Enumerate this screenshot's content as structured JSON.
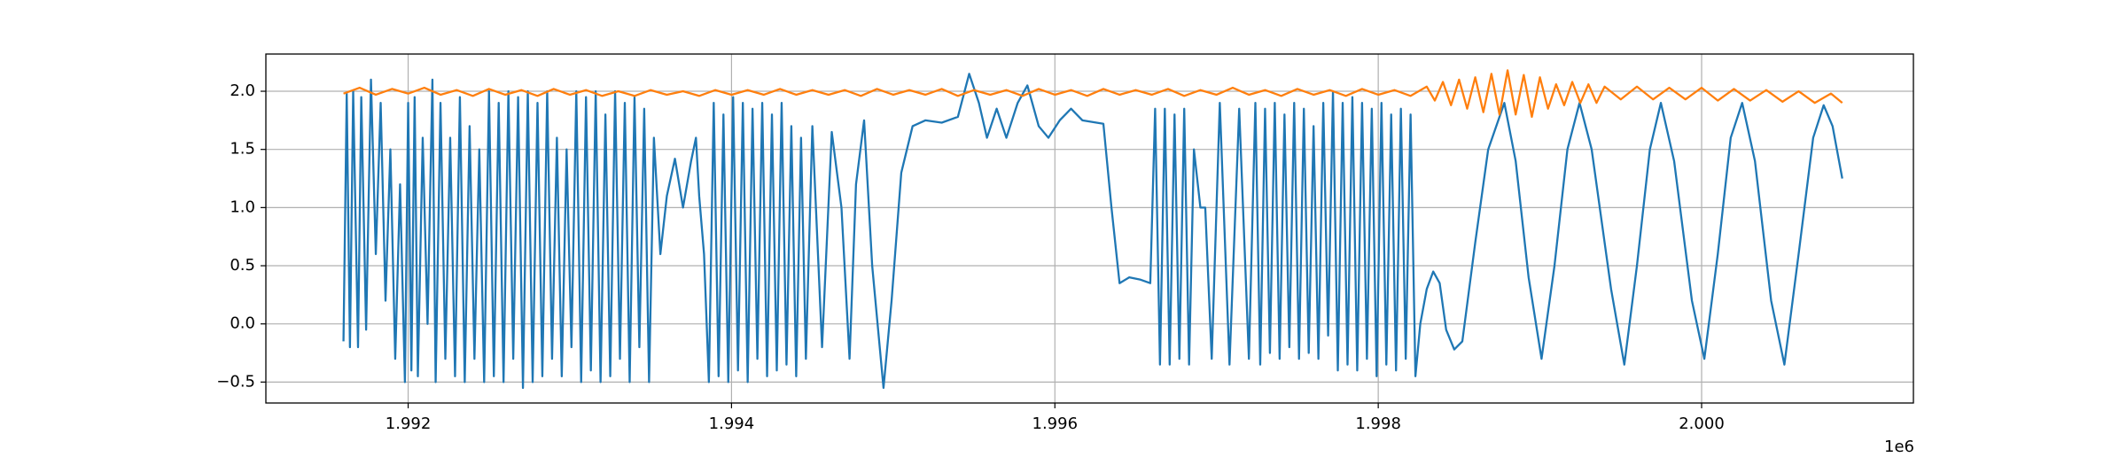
{
  "chart_data": {
    "type": "line",
    "offset_label": "1e6",
    "xlim": [
      1991120,
      2001310
    ],
    "ylim": [
      -0.68,
      2.32
    ],
    "xticks": [
      {
        "value": 1992000,
        "label": "1.992"
      },
      {
        "value": 1994000,
        "label": "1.994"
      },
      {
        "value": 1996000,
        "label": "1.996"
      },
      {
        "value": 1998000,
        "label": "1.998"
      },
      {
        "value": 2000000,
        "label": "2.000"
      }
    ],
    "yticks": [
      {
        "value": -0.5,
        "label": "−0.5"
      },
      {
        "value": 0,
        "label": "0.0"
      },
      0.5,
      {
        "value": 1,
        "label": "1.0"
      },
      1.5,
      {
        "value": 2,
        "label": "2.0"
      }
    ],
    "grid": true,
    "series": [
      {
        "color": "#1f77b4",
        "x": [
          1991600,
          1991620,
          1991640,
          1991660,
          1991690,
          1991710,
          1991740,
          1991770,
          1991800,
          1991830,
          1991860,
          1991890,
          1991920,
          1991950,
          1991980,
          1992000,
          1992020,
          1992040,
          1992060,
          1992090,
          1992120,
          1992150,
          1992170,
          1992200,
          1992230,
          1992260,
          1992290,
          1992320,
          1992350,
          1992380,
          1992410,
          1992440,
          1992470,
          1992500,
          1992530,
          1992560,
          1992590,
          1992620,
          1992650,
          1992680,
          1992710,
          1992740,
          1992770,
          1992800,
          1992830,
          1992860,
          1992890,
          1992920,
          1992950,
          1992980,
          1993010,
          1993040,
          1993070,
          1993100,
          1993130,
          1993160,
          1993190,
          1993220,
          1993250,
          1993280,
          1993310,
          1993340,
          1993370,
          1993400,
          1993430,
          1993460,
          1993490,
          1993520,
          1993560,
          1993600,
          1993650,
          1993700,
          1993750,
          1993780,
          1993800,
          1993830,
          1993860,
          1993890,
          1993920,
          1993950,
          1993980,
          1994010,
          1994040,
          1994070,
          1994100,
          1994130,
          1994160,
          1994190,
          1994220,
          1994250,
          1994280,
          1994310,
          1994340,
          1994370,
          1994400,
          1994430,
          1994460,
          1994500,
          1994560,
          1994620,
          1994680,
          1994730,
          1994770,
          1994820,
          1994870,
          1994940,
          1994990,
          1995050,
          1995120,
          1995200,
          1995300,
          1995400,
          1995470,
          1995530,
          1995580,
          1995640,
          1995700,
          1995770,
          1995830,
          1995900,
          1995960,
          1996030,
          1996100,
          1996170,
          1996300,
          1996350,
          1996400,
          1996460,
          1996530,
          1996590,
          1996620,
          1996650,
          1996680,
          1996710,
          1996740,
          1996770,
          1996800,
          1996830,
          1996860,
          1996900,
          1996930,
          1996970,
          1997020,
          1997080,
          1997140,
          1997200,
          1997240,
          1997270,
          1997300,
          1997330,
          1997360,
          1997390,
          1997420,
          1997450,
          1997480,
          1997510,
          1997540,
          1997570,
          1997600,
          1997630,
          1997660,
          1997690,
          1997720,
          1997750,
          1997780,
          1997810,
          1997840,
          1997870,
          1997900,
          1997930,
          1997960,
          1997990,
          1998020,
          1998050,
          1998080,
          1998110,
          1998140,
          1998170,
          1998200,
          1998230,
          1998260,
          1998300,
          1998340,
          1998380,
          1998420,
          1998470,
          1998520,
          1998600,
          1998680,
          1998780,
          1998850,
          1998930,
          1999010,
          1999090,
          1999170,
          1999245,
          1999320,
          1999440,
          1999522,
          1999600,
          1999680,
          1999748,
          1999830,
          1999940,
          2000017,
          2000100,
          2000180,
          2000251,
          2000330,
          2000430,
          2000512,
          2000600,
          2000690,
          2000755,
          2000810,
          2000870
        ],
        "values": [
          -0.15,
          1.98,
          -0.2,
          2.0,
          -0.2,
          1.95,
          -0.05,
          2.1,
          0.6,
          1.9,
          0.2,
          1.5,
          -0.3,
          1.2,
          -0.5,
          1.9,
          -0.4,
          1.95,
          -0.45,
          1.6,
          0.0,
          2.1,
          -0.5,
          1.9,
          -0.3,
          1.6,
          -0.45,
          1.95,
          -0.5,
          1.7,
          -0.3,
          1.5,
          -0.5,
          2.0,
          -0.45,
          1.9,
          -0.5,
          2.0,
          -0.3,
          1.95,
          -0.55,
          2.0,
          -0.5,
          1.9,
          -0.45,
          2.0,
          -0.3,
          1.6,
          -0.45,
          1.5,
          -0.2,
          2.0,
          -0.5,
          1.95,
          -0.4,
          2.0,
          -0.5,
          1.8,
          -0.45,
          2.0,
          -0.3,
          1.9,
          -0.5,
          1.95,
          -0.2,
          1.85,
          -0.5,
          1.6,
          0.6,
          1.1,
          1.42,
          1.0,
          1.4,
          1.6,
          1.1,
          0.6,
          -0.5,
          1.9,
          -0.45,
          1.8,
          -0.5,
          1.95,
          -0.4,
          1.9,
          -0.5,
          1.85,
          -0.3,
          1.9,
          -0.45,
          1.8,
          -0.4,
          1.9,
          -0.35,
          1.7,
          -0.45,
          1.6,
          -0.3,
          1.7,
          -0.2,
          1.65,
          1.0,
          -0.3,
          1.2,
          1.75,
          0.5,
          -0.55,
          0.2,
          1.3,
          1.7,
          1.75,
          1.73,
          1.78,
          2.15,
          1.9,
          1.6,
          1.85,
          1.6,
          1.9,
          2.05,
          1.7,
          1.6,
          1.75,
          1.85,
          1.75,
          1.72,
          1.0,
          0.35,
          0.4,
          0.38,
          0.35,
          1.85,
          -0.35,
          1.85,
          -0.35,
          1.8,
          -0.3,
          1.85,
          -0.35,
          1.5,
          1.0,
          1.0,
          -0.3,
          1.9,
          -0.35,
          1.85,
          -0.3,
          1.9,
          -0.35,
          1.85,
          -0.25,
          1.9,
          -0.3,
          1.8,
          -0.2,
          1.9,
          -0.3,
          1.85,
          -0.25,
          1.7,
          -0.3,
          1.9,
          -0.1,
          2.0,
          -0.4,
          1.9,
          -0.35,
          1.95,
          -0.4,
          1.9,
          -0.3,
          1.85,
          -0.45,
          1.9,
          -0.35,
          1.8,
          -0.4,
          1.85,
          -0.3,
          1.8,
          -0.45,
          0.0,
          0.3,
          0.45,
          0.35,
          -0.05,
          -0.22,
          -0.15,
          0.7,
          1.5,
          1.9,
          1.4,
          0.4,
          -0.3,
          0.5,
          1.5,
          1.9,
          1.5,
          0.3,
          -0.35,
          0.5,
          1.5,
          1.9,
          1.4,
          0.2,
          -0.3,
          0.6,
          1.6,
          1.9,
          1.4,
          0.2,
          -0.35,
          0.6,
          1.6,
          1.88,
          1.7,
          1.25
        ]
      },
      {
        "color": "#ff7f0e",
        "x": [
          1991600,
          1991700,
          1991800,
          1991900,
          1992000,
          1992100,
          1992200,
          1992300,
          1992400,
          1992500,
          1992600,
          1992700,
          1992800,
          1992900,
          1993000,
          1993100,
          1993200,
          1993300,
          1993400,
          1993500,
          1993600,
          1993700,
          1993800,
          1993900,
          1994000,
          1994100,
          1994200,
          1994300,
          1994400,
          1994500,
          1994600,
          1994700,
          1994800,
          1994900,
          1995000,
          1995100,
          1995200,
          1995300,
          1995400,
          1995500,
          1995600,
          1995700,
          1995800,
          1995900,
          1996000,
          1996100,
          1996200,
          1996300,
          1996400,
          1996500,
          1996600,
          1996700,
          1996800,
          1996900,
          1997000,
          1997100,
          1997200,
          1997300,
          1997400,
          1997500,
          1997600,
          1997700,
          1997800,
          1997900,
          1998000,
          1998100,
          1998200,
          1998300,
          1998350,
          1998400,
          1998450,
          1998500,
          1998550,
          1998600,
          1998650,
          1998700,
          1998750,
          1998800,
          1998850,
          1998900,
          1998950,
          1999000,
          1999050,
          1999100,
          1999150,
          1999200,
          1999250,
          1999300,
          1999350,
          1999400,
          1999500,
          1999600,
          1999700,
          1999800,
          1999900,
          2000000,
          2000100,
          2000200,
          2000300,
          2000400,
          2000500,
          2000600,
          2000700,
          2000800,
          2000870
        ],
        "values": [
          1.98,
          2.03,
          1.97,
          2.02,
          1.98,
          2.03,
          1.97,
          2.01,
          1.96,
          2.02,
          1.97,
          2.01,
          1.96,
          2.02,
          1.97,
          2.01,
          1.96,
          2.0,
          1.96,
          2.01,
          1.97,
          2.0,
          1.96,
          2.01,
          1.97,
          2.01,
          1.97,
          2.02,
          1.97,
          2.01,
          1.97,
          2.01,
          1.96,
          2.02,
          1.97,
          2.01,
          1.97,
          2.02,
          1.96,
          2.01,
          1.97,
          2.01,
          1.96,
          2.02,
          1.97,
          2.01,
          1.96,
          2.02,
          1.97,
          2.01,
          1.97,
          2.02,
          1.96,
          2.01,
          1.97,
          2.03,
          1.97,
          2.01,
          1.96,
          2.02,
          1.97,
          2.01,
          1.96,
          2.02,
          1.97,
          2.01,
          1.96,
          2.04,
          1.92,
          2.08,
          1.88,
          2.1,
          1.85,
          2.12,
          1.82,
          2.15,
          1.8,
          2.18,
          1.8,
          2.14,
          1.78,
          2.12,
          1.85,
          2.06,
          1.88,
          2.08,
          1.9,
          2.06,
          1.9,
          2.04,
          1.93,
          2.04,
          1.93,
          2.03,
          1.93,
          2.03,
          1.92,
          2.02,
          1.92,
          2.01,
          1.91,
          2.0,
          1.9,
          1.98,
          1.9
        ]
      }
    ]
  }
}
